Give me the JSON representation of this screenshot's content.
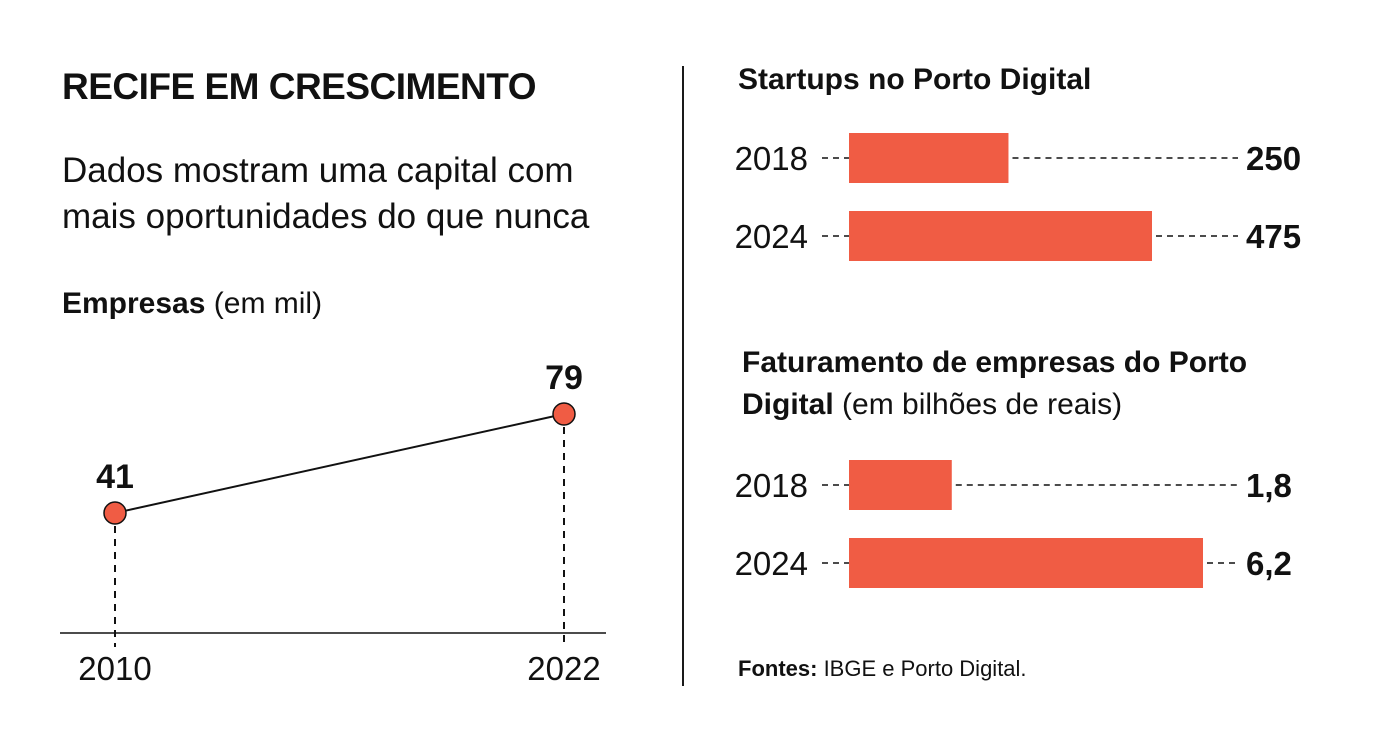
{
  "header": {
    "title": "RECIFE EM CRESCIMENTO",
    "subtitle_line1": "Dados mostram uma capital com",
    "subtitle_line2": "mais oportunidades do que nunca"
  },
  "colors": {
    "accent": "#f05c44",
    "text": "#111111"
  },
  "footer": {
    "sources_label": "Fontes:",
    "sources_text": " IBGE e Porto Digital."
  },
  "chart_data": [
    {
      "id": "empresas",
      "type": "line",
      "title": "Empresas",
      "unit": "(em mil)",
      "x": [
        "2010",
        "2022"
      ],
      "values": [
        41,
        79
      ],
      "labels": [
        "41",
        "79"
      ],
      "ylim": [
        0,
        100
      ]
    },
    {
      "id": "startups",
      "type": "bar",
      "orientation": "horizontal",
      "title": "Startups no Porto Digital",
      "categories": [
        "2018",
        "2024"
      ],
      "values": [
        250,
        475
      ],
      "labels": [
        "250",
        "475"
      ],
      "xlim": [
        0,
        475
      ]
    },
    {
      "id": "faturamento",
      "type": "bar",
      "orientation": "horizontal",
      "title": "Faturamento de empresas do Porto Digital",
      "unit": "(em bilhões de reais)",
      "categories": [
        "2018",
        "2024"
      ],
      "values": [
        1.8,
        6.2
      ],
      "labels": [
        "1,8",
        "6,2"
      ],
      "xlim": [
        0,
        6.2
      ]
    }
  ]
}
